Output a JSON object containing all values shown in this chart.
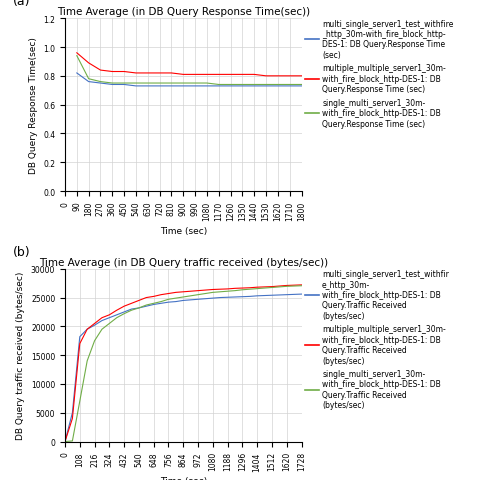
{
  "plot_a": {
    "title": "Time Average (in DB Query Response Time(sec))",
    "xlabel": "Time (sec)",
    "ylabel": "DB Query Response Time(sec)",
    "xlim": [
      0,
      1800
    ],
    "ylim": [
      0,
      1.2
    ],
    "yticks": [
      0,
      0.2,
      0.4,
      0.6,
      0.8,
      1.0,
      1.2
    ],
    "xticks": [
      0,
      90,
      180,
      270,
      360,
      450,
      540,
      630,
      720,
      810,
      900,
      990,
      1080,
      1170,
      1260,
      1350,
      1440,
      1530,
      1620,
      1710,
      1800
    ],
    "series": [
      {
        "label": "multi_single_server1_test_withfire\n_http_30m-with_fire_block_http-\nDES-1: DB Query.Response Time\n(sec)",
        "color": "#4472C4",
        "x": [
          90,
          180,
          270,
          360,
          450,
          540,
          630,
          720,
          810,
          900,
          990,
          1080,
          1170,
          1260,
          1350,
          1440,
          1530,
          1620,
          1710,
          1800
        ],
        "y": [
          0.82,
          0.76,
          0.75,
          0.74,
          0.74,
          0.73,
          0.73,
          0.73,
          0.73,
          0.73,
          0.73,
          0.73,
          0.73,
          0.73,
          0.73,
          0.73,
          0.73,
          0.73,
          0.73,
          0.73
        ]
      },
      {
        "label": "multiple_multiple_server1_30m-\nwith_fire_block_http-DES-1: DB\nQuery.Response Time (sec)",
        "color": "#FF0000",
        "x": [
          90,
          180,
          270,
          360,
          450,
          540,
          630,
          720,
          810,
          900,
          990,
          1080,
          1170,
          1260,
          1350,
          1440,
          1530,
          1620,
          1710,
          1800
        ],
        "y": [
          0.96,
          0.89,
          0.84,
          0.83,
          0.83,
          0.82,
          0.82,
          0.82,
          0.82,
          0.81,
          0.81,
          0.81,
          0.81,
          0.81,
          0.81,
          0.81,
          0.8,
          0.8,
          0.8,
          0.8
        ]
      },
      {
        "label": "single_multi_server1_30m-\nwith_fire_block_http-DES-1: DB\nQuery.Response Time (sec)",
        "color": "#70AD47",
        "x": [
          90,
          180,
          270,
          360,
          450,
          540,
          630,
          720,
          810,
          900,
          990,
          1080,
          1170,
          1260,
          1350,
          1440,
          1530,
          1620,
          1710,
          1800
        ],
        "y": [
          0.94,
          0.78,
          0.76,
          0.75,
          0.75,
          0.75,
          0.75,
          0.75,
          0.75,
          0.75,
          0.75,
          0.75,
          0.74,
          0.74,
          0.74,
          0.74,
          0.74,
          0.74,
          0.74,
          0.74
        ]
      }
    ]
  },
  "plot_b": {
    "title": "Time Average (in DB Query traffic received (bytes/sec))",
    "xlabel": "Time (sec)",
    "ylabel": "DB Query traffic received (bytes/sec)",
    "xlim": [
      0,
      1728
    ],
    "ylim": [
      0,
      30000
    ],
    "yticks": [
      0,
      5000,
      10000,
      15000,
      20000,
      25000,
      30000
    ],
    "xticks": [
      0,
      108,
      216,
      324,
      432,
      540,
      648,
      756,
      864,
      972,
      1080,
      1188,
      1296,
      1404,
      1512,
      1620,
      1728
    ],
    "series": [
      {
        "label": "multi_single_server1_test_withfir\ne_http_30m-\nwith_fire_block_http-DES-1: DB\nQuery.Traffic Received\n(bytes/sec)",
        "color": "#4472C4",
        "x": [
          0,
          54,
          108,
          162,
          216,
          270,
          324,
          378,
          432,
          486,
          540,
          594,
          648,
          702,
          756,
          810,
          864,
          918,
          972,
          1026,
          1080,
          1134,
          1188,
          1242,
          1296,
          1350,
          1404,
          1458,
          1512,
          1566,
          1620,
          1674,
          1728
        ],
        "y": [
          0,
          5000,
          18200,
          19500,
          20200,
          21000,
          21500,
          22000,
          22500,
          23000,
          23200,
          23500,
          23800,
          24000,
          24200,
          24300,
          24500,
          24600,
          24700,
          24800,
          24900,
          25000,
          25050,
          25100,
          25150,
          25200,
          25300,
          25350,
          25400,
          25450,
          25500,
          25550,
          25600
        ]
      },
      {
        "label": "multiple_multiple_server1_30m-\nwith_fire_block_http-DES-1: DB\nQuery.Traffic Received\n(bytes/sec)",
        "color": "#FF0000",
        "x": [
          0,
          54,
          108,
          162,
          216,
          270,
          324,
          378,
          432,
          486,
          540,
          594,
          648,
          702,
          756,
          810,
          864,
          918,
          972,
          1026,
          1080,
          1134,
          1188,
          1242,
          1296,
          1350,
          1404,
          1458,
          1512,
          1566,
          1620,
          1674,
          1728
        ],
        "y": [
          0,
          4000,
          17000,
          19500,
          20500,
          21500,
          22000,
          22800,
          23500,
          24000,
          24500,
          25000,
          25200,
          25500,
          25700,
          25900,
          26000,
          26100,
          26200,
          26300,
          26400,
          26450,
          26500,
          26600,
          26650,
          26700,
          26800,
          26850,
          26900,
          27000,
          27100,
          27150,
          27200
        ]
      },
      {
        "label": "single_multi_server1_30m-\nwith_fire_block_http-DES-1: DB\nQuery.Traffic Received\n(bytes/sec)",
        "color": "#70AD47",
        "x": [
          0,
          54,
          108,
          162,
          216,
          270,
          324,
          378,
          432,
          486,
          540,
          594,
          648,
          702,
          756,
          810,
          864,
          918,
          972,
          1026,
          1080,
          1134,
          1188,
          1242,
          1296,
          1350,
          1404,
          1458,
          1512,
          1566,
          1620,
          1674,
          1728
        ],
        "y": [
          0,
          100,
          7000,
          14000,
          17500,
          19500,
          20500,
          21500,
          22200,
          22800,
          23200,
          23700,
          24000,
          24300,
          24700,
          24900,
          25100,
          25300,
          25500,
          25700,
          25900,
          26000,
          26100,
          26200,
          26350,
          26450,
          26550,
          26650,
          26750,
          26850,
          26950,
          27000,
          27050
        ]
      }
    ]
  },
  "label_a": "(a)",
  "label_b": "(b)",
  "fig_width": 5.0,
  "fig_height": 4.81,
  "background_color": "#FFFFFF",
  "grid_color": "#D3D3D3",
  "tick_labelsize": 5.5,
  "legend_fontsize": 5.5,
  "title_fontsize": 7.5,
  "axis_labelsize": 6.5
}
